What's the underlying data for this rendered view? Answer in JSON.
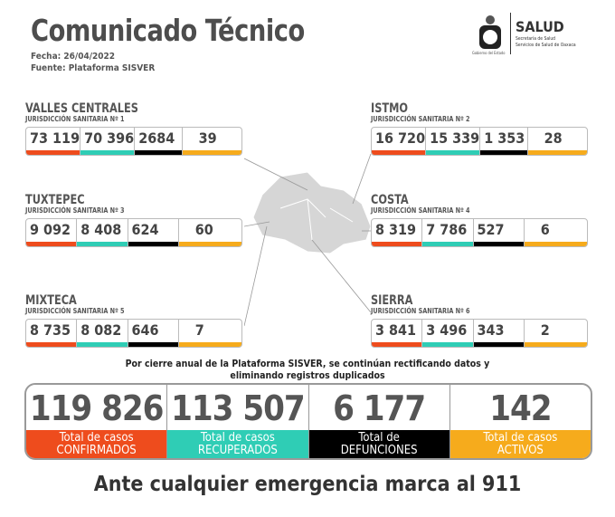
{
  "header": {
    "title": "Comunicado Técnico",
    "fecha": "Fecha: 26/04/2022",
    "fuente": "Fuente: Plataforma SISVER"
  },
  "logo": {
    "brand": "SALUD",
    "line1": "Secretaría de Salud",
    "line2": "Servicios de Salud de Oaxaca",
    "gobierno": "Gobierno del Estado"
  },
  "colors": {
    "confirmados": "#ee4c1d",
    "recuperados": "#2fcdb5",
    "defunciones": "#000000",
    "activos": "#f6ab1c"
  },
  "regions": [
    {
      "name": "VALLES CENTRALES",
      "sub": "JURISDICCIÓN SANITARIA Nº 1",
      "values": [
        "73 119",
        "70 396",
        "2684",
        "39"
      ]
    },
    {
      "name": "ISTMO",
      "sub": "JURISDICCIÓN SANITARIA Nº 2",
      "values": [
        "16 720",
        "15 339",
        "1 353",
        "28"
      ]
    },
    {
      "name": "TUXTEPEC",
      "sub": "JURISDICCIÓN SANITARIA Nº 3",
      "values": [
        "9 092",
        "8 408",
        "624",
        "60"
      ]
    },
    {
      "name": "COSTA",
      "sub": "JURISDICCIÓN SANITARIA Nº 4",
      "values": [
        "8 319",
        "7 786",
        "527",
        "6"
      ]
    },
    {
      "name": "MIXTECA",
      "sub": "JURISDICCIÓN SANITARIA Nº 5",
      "values": [
        "8 735",
        "8 082",
        "646",
        "7"
      ]
    },
    {
      "name": "SIERRA",
      "sub": "JURISDICCIÓN SANITARIA Nº 6",
      "values": [
        "3 841",
        "3 496",
        "343",
        "2"
      ]
    }
  ],
  "note": {
    "line1": "Por cierre anual de la Plataforma SISVER, se continúan rectificando datos y",
    "line2": "eliminando registros duplicados"
  },
  "totals": [
    {
      "value": "119 826",
      "l1": "Total de casos",
      "l2": "CONFIRMADOS"
    },
    {
      "value": "113 507",
      "l1": "Total de casos",
      "l2": "RECUPERADOS"
    },
    {
      "value": "6 177",
      "l1": "Total de",
      "l2": "DEFUNCIONES"
    },
    {
      "value": "142",
      "l1": "Total de casos",
      "l2": "ACTIVOS"
    }
  ],
  "footer": "Ante cualquier emergencia marca al 911"
}
